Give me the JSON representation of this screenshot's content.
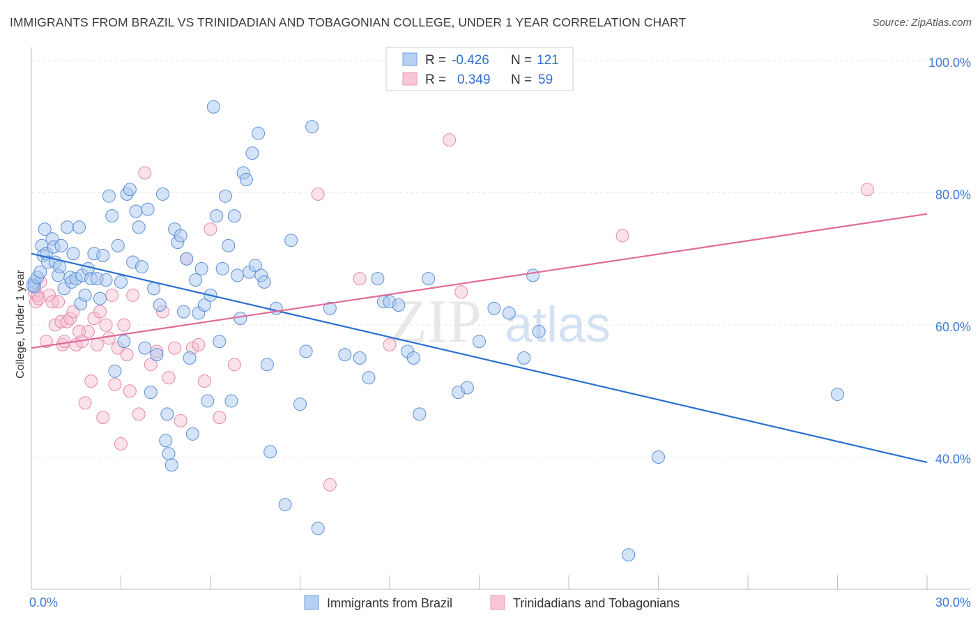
{
  "header": {
    "title": "IMMIGRANTS FROM BRAZIL VS TRINIDADIAN AND TOBAGONIAN COLLEGE, UNDER 1 YEAR CORRELATION CHART",
    "source": "Source: ZipAtlas.com"
  },
  "legend_stats": [
    {
      "r_label": "R =",
      "r_value": "-0.426",
      "n_label": "N =",
      "n_value": "121"
    },
    {
      "r_label": "R =",
      "r_value": "0.349",
      "n_label": "N =",
      "n_value": "59"
    }
  ],
  "watermark": {
    "zip": "ZIP",
    "atlas": "atlas"
  },
  "colors": {
    "blue_fill": "#aac8f0",
    "blue_stroke": "#5b8fd6",
    "blue_line": "#2a6fd1",
    "pink_fill": "#f7bdd0",
    "pink_stroke": "#e38aa8",
    "pink_line": "#e06b97",
    "tick_label": "#3b7ad8"
  },
  "chart_data": {
    "type": "scatter",
    "title": "IMMIGRANTS FROM BRAZIL VS TRINIDADIAN AND TOBAGONIAN COLLEGE, UNDER 1 YEAR CORRELATION CHART",
    "xlabel": "",
    "ylabel": "College, Under 1 year",
    "xlim": [
      0,
      30
    ],
    "ylim": [
      20,
      102
    ],
    "x_tick_labels": [
      "0.0%",
      "30.0%"
    ],
    "y_ticks": [
      40,
      60,
      80,
      100
    ],
    "y_tick_labels": [
      "40.0%",
      "60.0%",
      "80.0%",
      "100.0%"
    ],
    "grid": true,
    "legend_position": "bottom",
    "series": [
      {
        "name": "Immigrants from Brazil",
        "color": "#aac8f0",
        "trend": {
          "x": [
            0,
            30
          ],
          "y": [
            70.8,
            39.2
          ]
        },
        "points": [
          [
            0.1,
            66.5
          ],
          [
            0.1,
            65.8
          ],
          [
            0.05,
            66.0
          ],
          [
            0.2,
            67.2
          ],
          [
            0.3,
            68.0
          ],
          [
            0.35,
            72.0
          ],
          [
            0.4,
            70.5
          ],
          [
            0.45,
            74.5
          ],
          [
            0.5,
            70.8
          ],
          [
            0.55,
            69.5
          ],
          [
            0.7,
            73.0
          ],
          [
            0.75,
            71.8
          ],
          [
            0.8,
            69.5
          ],
          [
            0.9,
            67.5
          ],
          [
            0.95,
            68.8
          ],
          [
            1.0,
            72.0
          ],
          [
            1.1,
            65.5
          ],
          [
            1.2,
            74.8
          ],
          [
            1.3,
            67.2
          ],
          [
            1.4,
            70.8
          ],
          [
            1.35,
            66.5
          ],
          [
            1.5,
            67.0
          ],
          [
            1.6,
            74.8
          ],
          [
            1.65,
            63.2
          ],
          [
            1.7,
            67.5
          ],
          [
            1.8,
            64.5
          ],
          [
            1.9,
            68.5
          ],
          [
            2.0,
            67.0
          ],
          [
            2.1,
            70.8
          ],
          [
            2.2,
            67.0
          ],
          [
            2.3,
            64.0
          ],
          [
            2.4,
            70.5
          ],
          [
            2.5,
            66.8
          ],
          [
            2.6,
            79.5
          ],
          [
            2.7,
            76.5
          ],
          [
            2.8,
            53.0
          ],
          [
            2.9,
            72.0
          ],
          [
            3.0,
            66.5
          ],
          [
            3.1,
            57.5
          ],
          [
            3.2,
            79.8
          ],
          [
            3.3,
            80.5
          ],
          [
            3.4,
            69.5
          ],
          [
            3.5,
            77.2
          ],
          [
            3.6,
            74.8
          ],
          [
            3.7,
            68.8
          ],
          [
            3.8,
            56.5
          ],
          [
            3.9,
            77.5
          ],
          [
            4.0,
            49.8
          ],
          [
            4.1,
            65.5
          ],
          [
            4.2,
            55.5
          ],
          [
            4.3,
            63.0
          ],
          [
            4.4,
            79.8
          ],
          [
            4.5,
            42.5
          ],
          [
            4.55,
            46.5
          ],
          [
            4.6,
            40.5
          ],
          [
            4.7,
            38.8
          ],
          [
            4.8,
            74.5
          ],
          [
            4.9,
            72.5
          ],
          [
            5.0,
            73.5
          ],
          [
            5.1,
            62.0
          ],
          [
            5.2,
            70.0
          ],
          [
            5.3,
            55.0
          ],
          [
            5.4,
            43.5
          ],
          [
            5.5,
            66.8
          ],
          [
            5.6,
            61.8
          ],
          [
            5.7,
            68.5
          ],
          [
            5.8,
            63.0
          ],
          [
            5.9,
            48.5
          ],
          [
            6.0,
            64.5
          ],
          [
            6.1,
            93.0
          ],
          [
            6.2,
            76.5
          ],
          [
            6.3,
            57.5
          ],
          [
            6.4,
            68.5
          ],
          [
            6.5,
            79.5
          ],
          [
            6.6,
            72.0
          ],
          [
            6.7,
            48.5
          ],
          [
            6.8,
            76.5
          ],
          [
            6.9,
            67.5
          ],
          [
            7.0,
            61.0
          ],
          [
            7.1,
            83.0
          ],
          [
            7.2,
            82.0
          ],
          [
            7.3,
            68.0
          ],
          [
            7.4,
            86.0
          ],
          [
            7.5,
            69.0
          ],
          [
            7.6,
            89.0
          ],
          [
            7.7,
            67.5
          ],
          [
            7.8,
            66.5
          ],
          [
            7.9,
            54.0
          ],
          [
            8.0,
            40.8
          ],
          [
            8.2,
            62.5
          ],
          [
            8.5,
            32.8
          ],
          [
            8.7,
            72.8
          ],
          [
            9.0,
            48.0
          ],
          [
            9.2,
            56.0
          ],
          [
            9.4,
            90.0
          ],
          [
            9.6,
            29.2
          ],
          [
            10.0,
            62.5
          ],
          [
            10.5,
            55.5
          ],
          [
            11.0,
            55.0
          ],
          [
            11.3,
            52.0
          ],
          [
            11.6,
            67.0
          ],
          [
            11.8,
            63.5
          ],
          [
            12.0,
            63.5
          ],
          [
            12.3,
            63.0
          ],
          [
            12.6,
            56.0
          ],
          [
            12.8,
            55.0
          ],
          [
            13.0,
            46.5
          ],
          [
            13.3,
            67.0
          ],
          [
            14.3,
            49.8
          ],
          [
            14.6,
            50.5
          ],
          [
            15.0,
            57.5
          ],
          [
            15.5,
            62.5
          ],
          [
            16.0,
            61.8
          ],
          [
            16.5,
            55.0
          ],
          [
            16.8,
            67.5
          ],
          [
            17.0,
            59.0
          ],
          [
            20.0,
            25.2
          ],
          [
            21.0,
            40.0
          ],
          [
            27.0,
            49.5
          ]
        ]
      },
      {
        "name": "Trinidadians and Tobagonians",
        "color": "#f7bdd0",
        "trend": {
          "x": [
            0,
            30
          ],
          "y": [
            56.5,
            76.8
          ]
        },
        "points": [
          [
            0.1,
            65.0
          ],
          [
            0.15,
            63.5
          ],
          [
            0.2,
            64.5
          ],
          [
            0.25,
            64.0
          ],
          [
            0.3,
            66.5
          ],
          [
            0.5,
            57.5
          ],
          [
            0.6,
            64.5
          ],
          [
            0.7,
            63.5
          ],
          [
            0.8,
            60.0
          ],
          [
            0.9,
            63.5
          ],
          [
            1.0,
            60.5
          ],
          [
            1.05,
            57.0
          ],
          [
            1.1,
            57.5
          ],
          [
            1.2,
            60.5
          ],
          [
            1.3,
            61.0
          ],
          [
            1.4,
            62.0
          ],
          [
            1.5,
            57.0
          ],
          [
            1.6,
            59.0
          ],
          [
            1.7,
            57.5
          ],
          [
            1.8,
            48.2
          ],
          [
            1.9,
            59.0
          ],
          [
            2.0,
            51.5
          ],
          [
            2.1,
            61.0
          ],
          [
            2.2,
            57.0
          ],
          [
            2.3,
            62.0
          ],
          [
            2.4,
            46.0
          ],
          [
            2.5,
            60.0
          ],
          [
            2.6,
            58.0
          ],
          [
            2.7,
            64.5
          ],
          [
            2.8,
            51.0
          ],
          [
            2.9,
            56.5
          ],
          [
            3.0,
            42.0
          ],
          [
            3.1,
            60.0
          ],
          [
            3.2,
            55.5
          ],
          [
            3.3,
            50.0
          ],
          [
            3.4,
            64.5
          ],
          [
            3.6,
            46.5
          ],
          [
            3.8,
            83.0
          ],
          [
            4.0,
            54.0
          ],
          [
            4.2,
            56.0
          ],
          [
            4.4,
            62.0
          ],
          [
            4.6,
            52.0
          ],
          [
            4.8,
            56.5
          ],
          [
            5.0,
            45.5
          ],
          [
            5.2,
            70.0
          ],
          [
            5.4,
            56.5
          ],
          [
            5.6,
            57.0
          ],
          [
            5.8,
            51.5
          ],
          [
            6.0,
            74.5
          ],
          [
            6.3,
            46.0
          ],
          [
            6.8,
            54.0
          ],
          [
            9.6,
            79.8
          ],
          [
            10.0,
            35.8
          ],
          [
            11.0,
            67.0
          ],
          [
            12.0,
            57.0
          ],
          [
            14.0,
            88.0
          ],
          [
            14.4,
            65.0
          ],
          [
            19.8,
            73.5
          ],
          [
            28.0,
            80.5
          ]
        ]
      }
    ]
  },
  "bottom_legend": [
    {
      "label": "Immigrants from Brazil"
    },
    {
      "label": "Trinidadians and Tobagonians"
    }
  ]
}
